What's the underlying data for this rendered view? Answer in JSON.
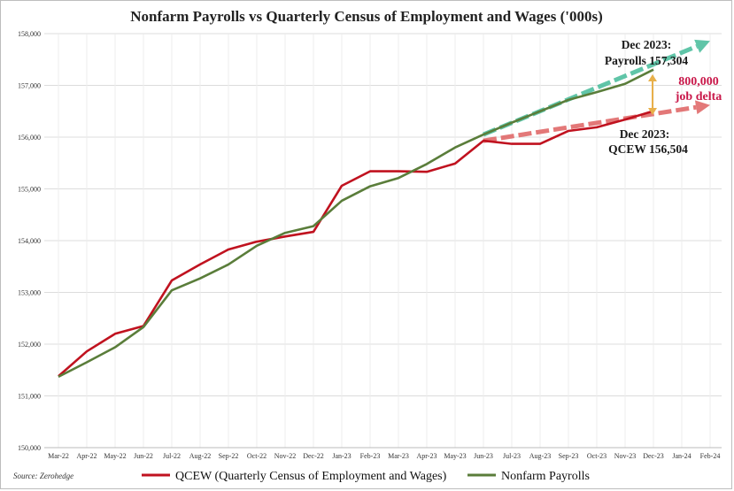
{
  "chart_data": {
    "type": "line",
    "title": "Nonfarm Payrolls vs Quarterly Census of Employment and Wages ('000s)",
    "categories": [
      "Mar-22",
      "Apr-22",
      "May-22",
      "Jun-22",
      "Jul-22",
      "Aug-22",
      "Sep-22",
      "Oct-22",
      "Nov-22",
      "Dec-22",
      "Jan-23",
      "Feb-23",
      "Mar-23",
      "Apr-23",
      "May-23",
      "Jun-23",
      "Jul-23",
      "Aug-23",
      "Sep-23",
      "Oct-23",
      "Nov-23",
      "Dec-23",
      "Jan-24",
      "Feb-24"
    ],
    "y_ticks": [
      "150,000",
      "151,000",
      "152,000",
      "153,000",
      "154,000",
      "155,000",
      "156,000",
      "157,000",
      "158,000"
    ],
    "ylim": [
      150000,
      158000
    ],
    "grid": true,
    "legend_position": "bottom",
    "series": [
      {
        "name": "QCEW (Quarterly Census of Employment and Wages)",
        "color": "#c0121f",
        "values": [
          151380,
          151860,
          152200,
          152350,
          153230,
          153540,
          153830,
          153980,
          154080,
          154170,
          155060,
          155340,
          155340,
          155330,
          155490,
          155930,
          155870,
          155870,
          156120,
          156190,
          156340,
          156504,
          null,
          null
        ]
      },
      {
        "name": "Nonfarm Payrolls",
        "color": "#5a7d3a",
        "values": [
          151370,
          151650,
          151940,
          152330,
          153040,
          153270,
          153540,
          153900,
          154150,
          154280,
          154770,
          155050,
          155210,
          155480,
          155800,
          156050,
          156280,
          156500,
          156720,
          156870,
          157030,
          157304,
          null,
          null
        ]
      }
    ],
    "trend_arrows": [
      {
        "color": "#4fbf9f",
        "from": [
          "Jun-23",
          156050
        ],
        "to": [
          "Feb-24",
          157860
        ]
      },
      {
        "color": "#e06a6a",
        "from": [
          "Jun-23",
          155930
        ],
        "to": [
          "Feb-24",
          156620
        ]
      }
    ],
    "annotations": {
      "payrolls": [
        "Dec 2023:",
        "Payrolls 157,304"
      ],
      "delta": [
        "800,000",
        "job delta"
      ],
      "qcew": [
        "Dec 2023:",
        "QCEW 156,504"
      ]
    },
    "source": "Source: Zerohedge",
    "colors": {
      "delta_arrow": "#e8b04a",
      "delta_text": "#c9184a"
    }
  }
}
